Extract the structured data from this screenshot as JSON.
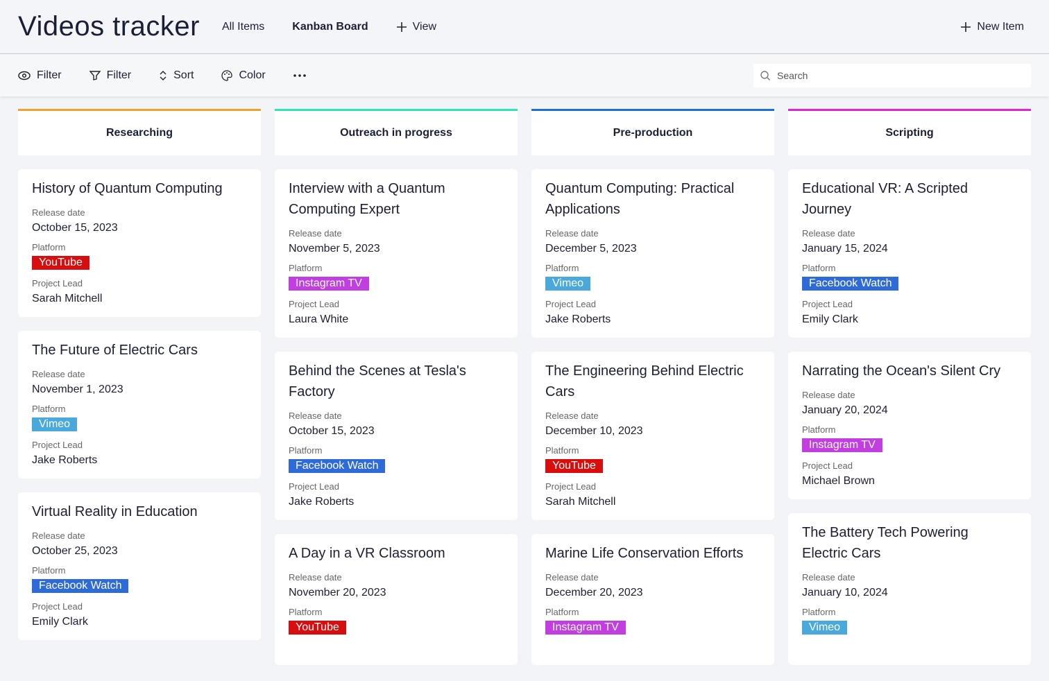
{
  "header": {
    "title": "Videos tracker",
    "nav": [
      "All Items",
      "Kanban Board",
      "View"
    ],
    "new_item": "New Item"
  },
  "toolbar": {
    "buttons": [
      "Filter",
      "Filter",
      "Sort",
      "Color"
    ],
    "search_placeholder": "Search"
  },
  "card_labels": {
    "release_date": "Release date",
    "platform": "Platform",
    "project_lead": "Project Lead"
  },
  "platform_colors": {
    "YouTube": "#d90d0d",
    "Instagram TV": "#c23ee0",
    "Vimeo": "#4aa9dc",
    "Facebook Watch": "#2f6bd8"
  },
  "columns": [
    {
      "title": "Researching",
      "color": "#f0a030",
      "cards": [
        {
          "title": "History of Quantum Computing",
          "release_date": "October 15, 2023",
          "platform": "YouTube",
          "project_lead": "Sarah Mitchell"
        },
        {
          "title": "The Future of Electric Cars",
          "release_date": "November 1, 2023",
          "platform": "Vimeo",
          "project_lead": "Jake Roberts"
        },
        {
          "title": "Virtual Reality in Education",
          "release_date": "October 25, 2023",
          "platform": "Facebook Watch",
          "project_lead": "Emily Clark"
        }
      ]
    },
    {
      "title": "Outreach in progress",
      "color": "#2ee6b4",
      "cards": [
        {
          "title": "Interview with a Quantum Computing Expert",
          "release_date": "November 5, 2023",
          "platform": "Instagram TV",
          "project_lead": "Laura White"
        },
        {
          "title": "Behind the Scenes at Tesla's Factory",
          "release_date": "October 15, 2023",
          "platform": "Facebook Watch",
          "project_lead": "Jake Roberts"
        },
        {
          "title": "A Day in a VR Classroom",
          "release_date": "November 20, 2023",
          "platform": "YouTube"
        }
      ]
    },
    {
      "title": "Pre-production",
      "color": "#1d6fd6",
      "cards": [
        {
          "title": "Quantum Computing: Practical Applications",
          "release_date": "December 5, 2023",
          "platform": "Vimeo",
          "project_lead": "Jake Roberts"
        },
        {
          "title": "The Engineering Behind Electric Cars",
          "release_date": "December 10, 2023",
          "platform": "YouTube",
          "project_lead": "Sarah Mitchell"
        },
        {
          "title": "Marine Life Conservation Efforts",
          "release_date": "December 20, 2023",
          "platform": "Instagram TV"
        }
      ]
    },
    {
      "title": "Scripting",
      "color": "#e025d6",
      "cards": [
        {
          "title": "Educational VR: A Scripted Journey",
          "release_date": "January 15, 2024",
          "platform": "Facebook Watch",
          "project_lead": "Emily Clark"
        },
        {
          "title": "Narrating the Ocean's Silent Cry",
          "release_date": "January 20, 2024",
          "platform": "Instagram TV",
          "project_lead": "Michael Brown"
        },
        {
          "title": "The Battery Tech Powering Electric Cars",
          "release_date": "January 10, 2024",
          "platform": "Vimeo"
        }
      ]
    }
  ]
}
